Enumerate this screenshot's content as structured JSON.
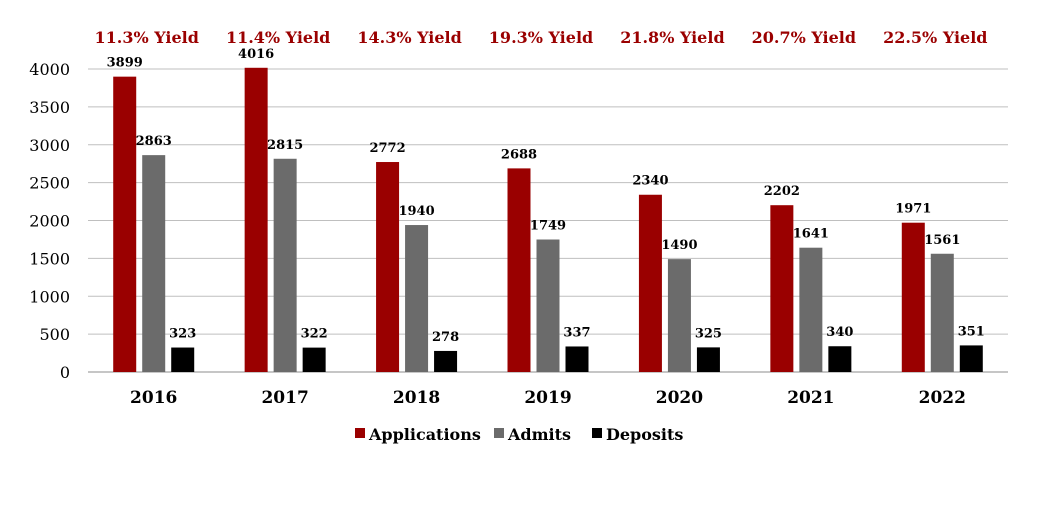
{
  "chart_data": {
    "type": "bar",
    "categories": [
      "2016",
      "2017",
      "2018",
      "2019",
      "2020",
      "2021",
      "2022"
    ],
    "series": [
      {
        "name": "Applications",
        "color": "#9a0000",
        "values": [
          3899,
          4016,
          2772,
          2688,
          2340,
          2202,
          1971
        ]
      },
      {
        "name": "Admits",
        "color": "#6b6b6b",
        "values": [
          2863,
          2815,
          1940,
          1749,
          1490,
          1641,
          1561
        ]
      },
      {
        "name": "Deposits",
        "color": "#000000",
        "values": [
          323,
          322,
          278,
          337,
          325,
          340,
          351
        ]
      }
    ],
    "annotations": [
      "11.3% Yield",
      "11.4% Yield",
      "14.3% Yield",
      "19.3% Yield",
      "21.8% Yield",
      "20.7% Yield",
      "22.5% Yield"
    ],
    "ylim": [
      0,
      4000
    ],
    "yticks": [
      0,
      500,
      1000,
      1500,
      2000,
      2500,
      3000,
      3500,
      4000
    ],
    "grid": true,
    "legend_position": "bottom",
    "annotation_color": "#9a0000"
  }
}
